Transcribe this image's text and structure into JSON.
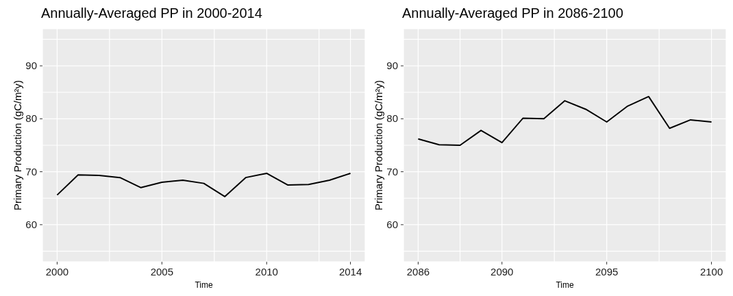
{
  "chart_data": [
    {
      "type": "line",
      "title": "Annually-Averaged PP in 2000-2014",
      "xlabel": "Time",
      "ylabel": "Primary Production (gC/m²y)",
      "x": [
        2000,
        2001,
        2002,
        2003,
        2004,
        2005,
        2006,
        2007,
        2008,
        2009,
        2010,
        2011,
        2012,
        2013,
        2014
      ],
      "series": [
        {
          "color": "#000000",
          "values": [
            65.6,
            69.4,
            69.3,
            68.9,
            67.0,
            68.0,
            68.4,
            67.8,
            65.3,
            68.9,
            69.7,
            67.5,
            67.6,
            68.4,
            69.7
          ]
        }
      ],
      "xlim": [
        1999.3,
        2014.7
      ],
      "xticks": [
        2000,
        {
          "value": 2002.5,
          "label": null
        },
        2005,
        {
          "value": 2007.5,
          "label": null
        },
        2010,
        {
          "value": 2012.5,
          "label": null
        },
        2014
      ],
      "ylim": [
        53,
        97
      ],
      "yticks": [
        {
          "value": 55,
          "label": null
        },
        60,
        {
          "value": 65,
          "label": null
        },
        70,
        {
          "value": 75,
          "label": null
        },
        80,
        {
          "value": 85,
          "label": null
        },
        90,
        {
          "value": 95,
          "label": null
        }
      ],
      "grid": true,
      "marker": "none",
      "line_style": "solid"
    },
    {
      "type": "line",
      "title": "Annually-Averaged PP in 2086-2100",
      "xlabel": "Time",
      "ylabel": "Primary Production (gC/m²y)",
      "x": [
        2086,
        2087,
        2088,
        2089,
        2090,
        2091,
        2092,
        2093,
        2094,
        2095,
        2096,
        2097,
        2098,
        2099,
        2100
      ],
      "series": [
        {
          "color": "#000000",
          "values": [
            76.2,
            75.1,
            75.0,
            77.8,
            75.5,
            80.1,
            80.0,
            83.4,
            81.8,
            79.4,
            82.4,
            84.2,
            78.2,
            79.8,
            79.4
          ]
        }
      ],
      "xlim": [
        2085.3,
        2100.7
      ],
      "xticks": [
        2086,
        {
          "value": 2088,
          "label": null
        },
        2090,
        {
          "value": 2092.5,
          "label": null
        },
        2095,
        {
          "value": 2097.5,
          "label": null
        },
        2100
      ],
      "ylim": [
        53,
        97
      ],
      "yticks": [
        {
          "value": 55,
          "label": null
        },
        60,
        {
          "value": 65,
          "label": null
        },
        70,
        {
          "value": 75,
          "label": null
        },
        80,
        {
          "value": 85,
          "label": null
        },
        90,
        {
          "value": 95,
          "label": null
        }
      ],
      "grid": true,
      "marker": "none",
      "line_style": "solid"
    }
  ]
}
